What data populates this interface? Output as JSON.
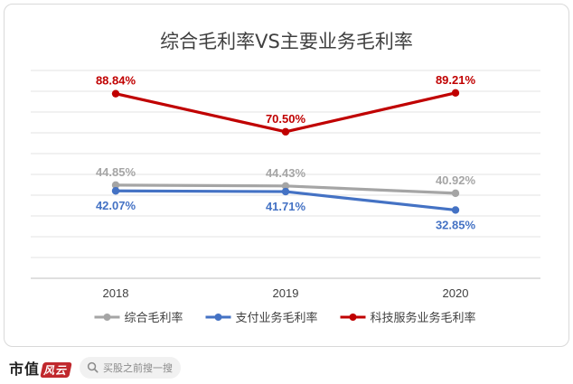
{
  "chart_data": {
    "type": "line",
    "title": "综合毛利率VS主要业务毛利率",
    "categories": [
      "2018",
      "2019",
      "2020"
    ],
    "ylim": [
      0,
      100
    ],
    "grid": true,
    "legend_position": "bottom",
    "series": [
      {
        "name": "综合毛利率",
        "values": [
          44.85,
          44.43,
          40.92
        ],
        "labels": [
          "44.85%",
          "44.43%",
          "40.92%"
        ],
        "color": "#a5a5a5",
        "label_position": "above"
      },
      {
        "name": "支付业务毛利率",
        "values": [
          42.07,
          41.71,
          32.85
        ],
        "labels": [
          "42.07%",
          "41.71%",
          "32.85%"
        ],
        "color": "#4472c4",
        "label_position": "below"
      },
      {
        "name": "科技服务业务毛利率",
        "values": [
          88.84,
          70.5,
          89.21
        ],
        "labels": [
          "88.84%",
          "70.50%",
          "89.21%"
        ],
        "color": "#c00000",
        "label_position": "above"
      }
    ]
  },
  "footer": {
    "brand": "市值",
    "brand_mark": "风云",
    "search_placeholder": "买股之前搜一搜"
  }
}
